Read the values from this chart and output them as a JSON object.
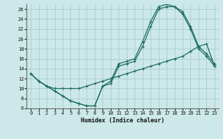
{
  "xlabel": "Humidex (Indice chaleur)",
  "xlim": [
    -0.5,
    23.5
  ],
  "ylim": [
    6,
    27
  ],
  "yticks": [
    6,
    8,
    10,
    12,
    14,
    16,
    18,
    20,
    22,
    24,
    26
  ],
  "xticks": [
    0,
    1,
    2,
    3,
    4,
    5,
    6,
    7,
    8,
    9,
    10,
    11,
    12,
    13,
    14,
    15,
    16,
    17,
    18,
    19,
    20,
    21,
    22,
    23
  ],
  "bg_color": "#cce8e8",
  "grid_color": "#aacccc",
  "line_color": "#1a6b5a",
  "line1_x": [
    0,
    1,
    2,
    3,
    4,
    5,
    6,
    7,
    8,
    9,
    10,
    11,
    12,
    13,
    14,
    15,
    16,
    17,
    18,
    19,
    20,
    21,
    22,
    23
  ],
  "line1_y": [
    13,
    11.5,
    10.5,
    9.5,
    8.5,
    7.5,
    7.0,
    6.5,
    6.5,
    10.5,
    11.0,
    14.5,
    15.0,
    15.5,
    18.5,
    22.5,
    26.0,
    26.5,
    26.5,
    25.0,
    22.0,
    18.0,
    16.5,
    14.5
  ],
  "line2_x": [
    0,
    1,
    2,
    3,
    4,
    5,
    6,
    7,
    8,
    9,
    10,
    11,
    12,
    13,
    14,
    15,
    16,
    17,
    18,
    19,
    20,
    21,
    22,
    23
  ],
  "line2_y": [
    13,
    11.5,
    10.5,
    9.5,
    8.5,
    7.5,
    7.0,
    6.5,
    6.5,
    10.5,
    11.5,
    15.0,
    15.5,
    16.0,
    19.5,
    23.5,
    26.5,
    27.0,
    26.5,
    25.5,
    22.5,
    18.5,
    17.0,
    15.0
  ],
  "line3_x": [
    0,
    1,
    2,
    3,
    4,
    5,
    6,
    7,
    8,
    9,
    10,
    11,
    12,
    13,
    14,
    15,
    16,
    17,
    18,
    19,
    20,
    21,
    22,
    23
  ],
  "line3_y": [
    13.0,
    11.5,
    10.5,
    10.0,
    10.0,
    10.0,
    10.0,
    10.5,
    11.0,
    11.5,
    12.0,
    12.5,
    13.0,
    13.5,
    14.0,
    14.5,
    15.0,
    15.5,
    16.0,
    16.5,
    17.5,
    18.5,
    19.0,
    14.5
  ]
}
